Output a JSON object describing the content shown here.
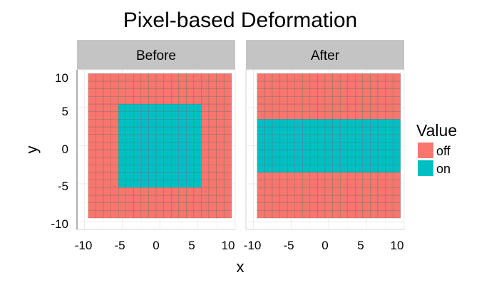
{
  "chart_data": {
    "type": "heatmap",
    "title": "Pixel-based Deformation",
    "xlabel": "x",
    "ylabel": "y",
    "xlim": [
      -11,
      10
    ],
    "ylim": [
      -11,
      10
    ],
    "x_ticks": [
      -10,
      -5,
      0,
      5,
      10
    ],
    "y_ticks": [
      -10,
      -5,
      0,
      5,
      10
    ],
    "x_tick_labels": [
      "-10",
      "-5",
      "0",
      "5",
      "10"
    ],
    "y_tick_labels": [
      "-10",
      "-5",
      "0",
      "5",
      "10"
    ],
    "grid": true,
    "legend": {
      "title": "Value",
      "position": "right",
      "entries": [
        {
          "label": "off",
          "color": "#F8766D"
        },
        {
          "label": "on",
          "color": "#00BFC4"
        }
      ]
    },
    "cell_range": [
      -9,
      9
    ],
    "panels": [
      {
        "label": "Before",
        "on_x": [
          -5,
          5
        ],
        "on_y": [
          -5,
          5
        ]
      },
      {
        "label": "After",
        "on_x": [
          -9,
          9
        ],
        "on_y": [
          -3,
          3
        ]
      }
    ]
  }
}
